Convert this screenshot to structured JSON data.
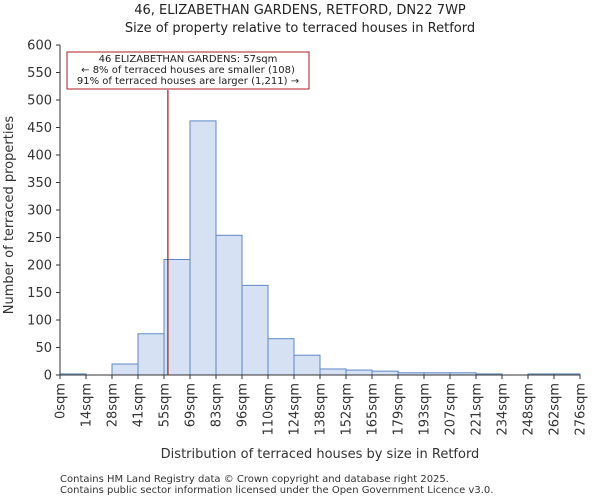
{
  "title_line1": "46, ELIZABETHAN GARDENS, RETFORD, DN22 7WP",
  "title_line2": "Size of property relative to terraced houses in Retford",
  "footer_line1": "Contains HM Land Registry data © Crown copyright and database right 2025.",
  "footer_line2": "Contains public sector information licensed under the Open Government Licence v3.0.",
  "colors": {
    "bar_fill": "#d6e2f3",
    "bar_stroke": "#5f88c6",
    "marker": "#a01818",
    "annotation_border": "#b01c1c"
  },
  "chart_data": {
    "type": "bar",
    "xlabel": "Distribution of terraced houses by size in Retford",
    "ylabel": "Number of terraced properties",
    "ylim": [
      0,
      600
    ],
    "yticks": [
      0,
      50,
      100,
      150,
      200,
      250,
      300,
      350,
      400,
      450,
      500,
      550,
      600
    ],
    "bin_edges_labels": [
      "0sqm",
      "14sqm",
      "28sqm",
      "41sqm",
      "55sqm",
      "69sqm",
      "83sqm",
      "96sqm",
      "110sqm",
      "124sqm",
      "138sqm",
      "152sqm",
      "165sqm",
      "179sqm",
      "193sqm",
      "207sqm",
      "221sqm",
      "234sqm",
      "248sqm",
      "262sqm",
      "276sqm"
    ],
    "values": [
      2,
      0,
      20,
      75,
      210,
      462,
      254,
      163,
      66,
      36,
      11,
      9,
      7,
      4,
      4,
      4,
      2,
      0,
      2,
      2
    ],
    "property_marker": {
      "value_sqm": 57,
      "bin_index_position": 4.15
    },
    "annotation": {
      "line1": "46 ELIZABETHAN GARDENS: 57sqm",
      "line2": "← 8% of terraced houses are smaller (108)",
      "line3": "91% of terraced houses are larger (1,211) →"
    }
  }
}
